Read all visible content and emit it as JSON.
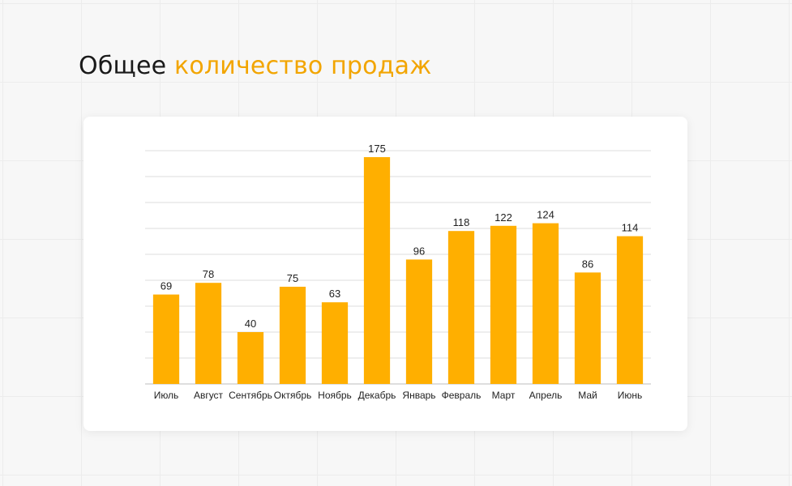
{
  "page": {
    "title_part1": "Общее",
    "title_part2": "количество продаж"
  },
  "colors": {
    "accent": "#f2a500",
    "bar": "#ffaf00",
    "gridline": "#dcdcdc",
    "text": "#1a1a1a"
  },
  "chart_data": {
    "type": "bar",
    "categories": [
      "Июль",
      "Август",
      "Сентябрь",
      "Октябрь",
      "Ноябрь",
      "Декабрь",
      "Январь",
      "Февраль",
      "Март",
      "Апрель",
      "Май",
      "Июнь"
    ],
    "values": [
      69,
      78,
      40,
      75,
      63,
      175,
      96,
      118,
      122,
      124,
      86,
      114
    ],
    "title": "",
    "xlabel": "",
    "ylabel": "",
    "ylim": [
      0,
      180
    ],
    "grid": true,
    "legend": "none"
  }
}
